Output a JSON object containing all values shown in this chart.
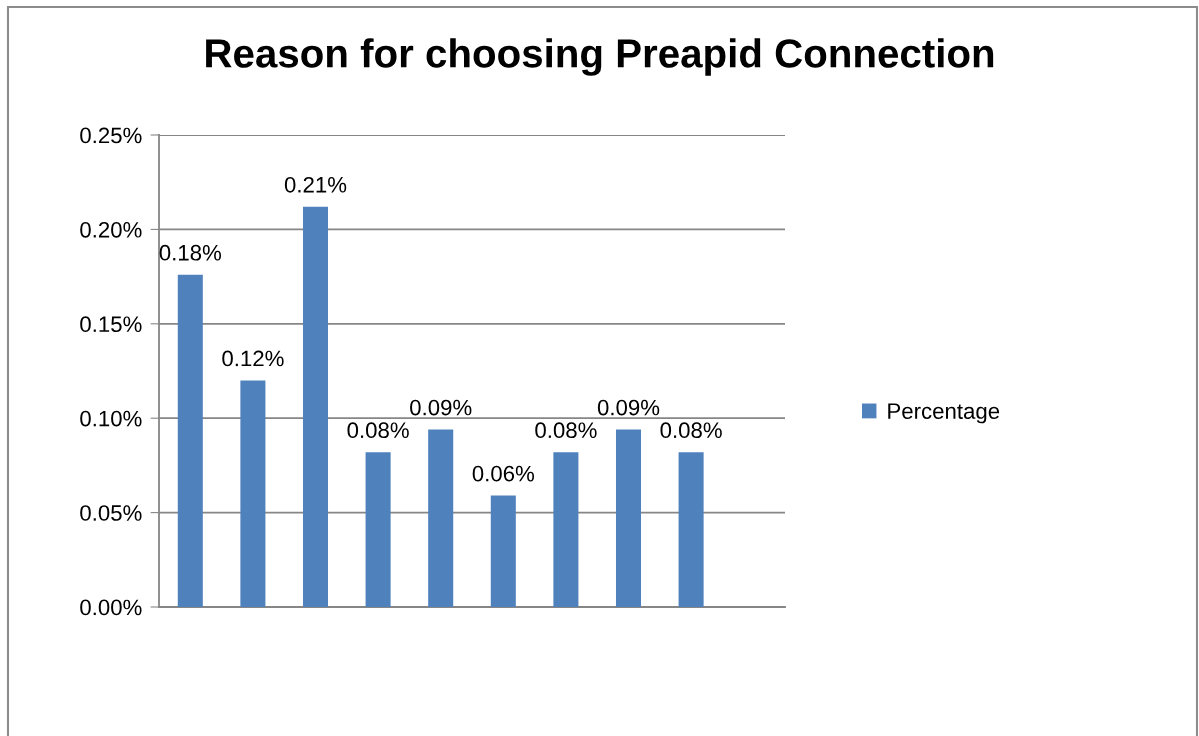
{
  "chart_data": {
    "type": "bar",
    "title": "Reason for choosing Preapid Connection",
    "categories": [
      null,
      null,
      null,
      null,
      null,
      null,
      null,
      null,
      null,
      null
    ],
    "series": [
      {
        "name": "Percentage",
        "color": "#4f81bd",
        "values": [
          0.176,
          0.12,
          0.212,
          0.082,
          0.094,
          0.059,
          0.082,
          0.094,
          0.082,
          null
        ],
        "value_labels": [
          "0.18%",
          "0.12%",
          "0.21%",
          "0.08%",
          "0.09%",
          "0.06%",
          "0.08%",
          "0.09%",
          "0.08%",
          null
        ]
      }
    ],
    "ylim": [
      0,
      0.25
    ],
    "yticks": [
      {
        "value": 0,
        "label": "0.00%"
      },
      {
        "value": 0.05,
        "label": "0.05%"
      },
      {
        "value": 0.1,
        "label": "0.10%"
      },
      {
        "value": 0.15,
        "label": "0.15%"
      },
      {
        "value": 0.2,
        "label": "0.20%"
      },
      {
        "value": 0.25,
        "label": "0.25%"
      }
    ],
    "grid": "y",
    "legend": "right",
    "tick_labels": "y"
  }
}
